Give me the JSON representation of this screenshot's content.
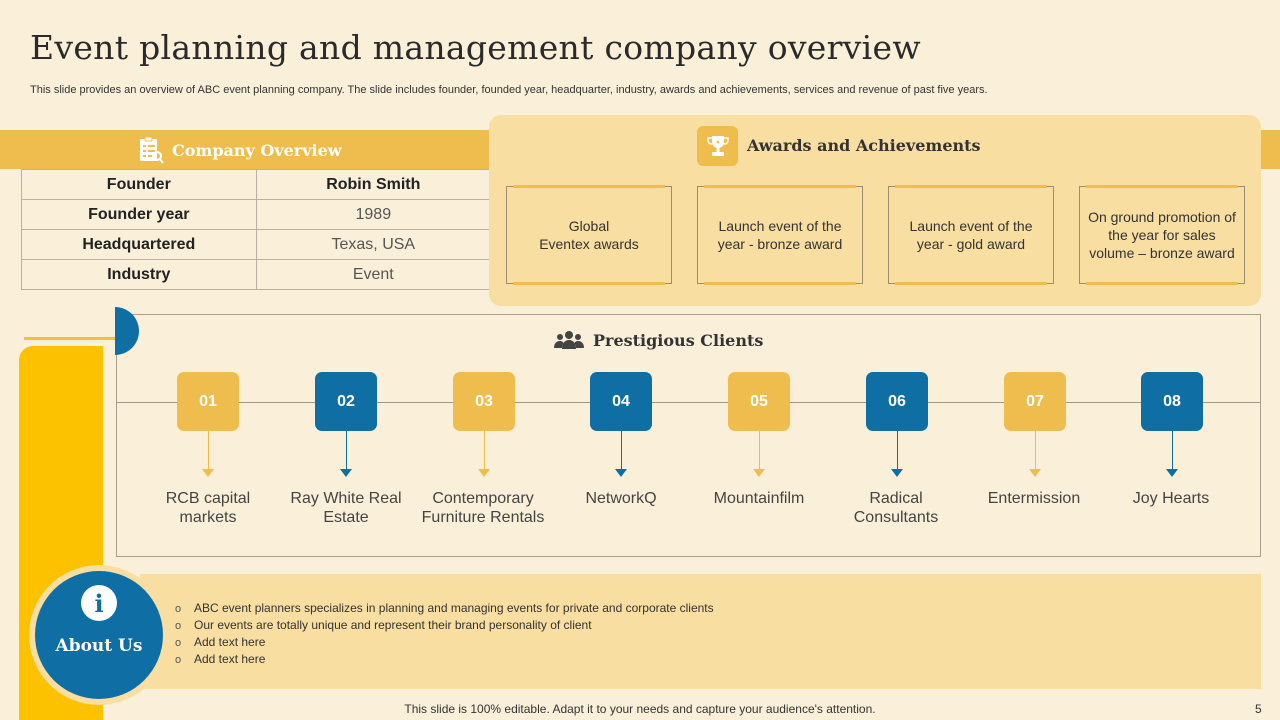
{
  "slide": {
    "title": "Event planning and management company overview",
    "subtitle": "This slide provides an overview of ABC event planning company. The slide includes founder, founded year, headquarter, industry, awards and achievements, services and revenue of past five years.",
    "footer": "This slide is 100% editable. Adapt it to your needs and capture your audience's attention.",
    "page_number": "5"
  },
  "company_overview": {
    "header": "Company Overview",
    "rows": [
      {
        "key": "Founder",
        "value": "Robin Smith"
      },
      {
        "key": "Founder year",
        "value": "1989"
      },
      {
        "key": "Headquartered",
        "value": "Texas, USA"
      },
      {
        "key": "Industry",
        "value": "Event"
      }
    ]
  },
  "awards": {
    "header": "Awards and Achievements",
    "items": [
      "Global\nEventex awards",
      "Launch event of the year - bronze award",
      "Launch event of the year - gold award",
      "On ground promotion of the year for sales volume – bronze award"
    ]
  },
  "clients": {
    "header": "Prestigious Clients",
    "items": [
      {
        "num": "01",
        "name": "RCB capital markets"
      },
      {
        "num": "02",
        "name": "Ray White Real Estate"
      },
      {
        "num": "03",
        "name": "Contemporary Furniture Rentals"
      },
      {
        "num": "04",
        "name": "NetworkQ"
      },
      {
        "num": "05",
        "name": "Mountainfilm"
      },
      {
        "num": "06",
        "name": "Radical Consultants"
      },
      {
        "num": "07",
        "name": "Entermission"
      },
      {
        "num": "08",
        "name": "Joy Hearts"
      }
    ]
  },
  "about": {
    "label": "About Us",
    "bullets": [
      "ABC event planners specializes in planning and managing events for private and corporate clients",
      "Our events are totally unique and represent their brand personality of client",
      "Add text here",
      "Add text here"
    ]
  },
  "colors": {
    "gold": "#efbd4e",
    "blue": "#0f6fa5",
    "cream": "#faf0d9",
    "light_gold": "#f8dea1"
  },
  "icons": {
    "company_overview": "document-checklist-icon",
    "awards": "trophy-icon",
    "clients": "people-group-icon",
    "about": "info-icon"
  }
}
